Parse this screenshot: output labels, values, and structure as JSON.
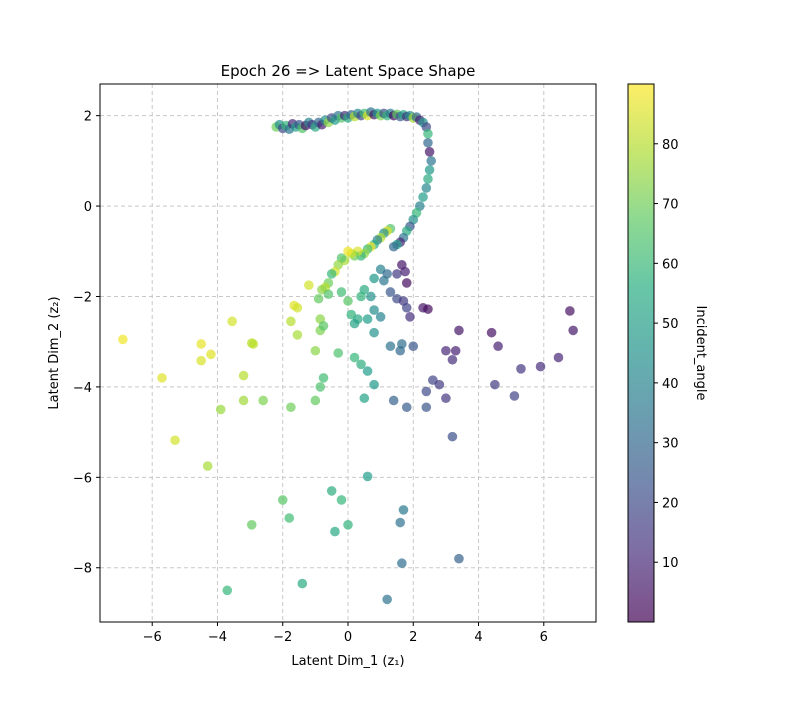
{
  "chart_data": {
    "type": "scatter",
    "title": "Epoch 26 => Latent Space Shape",
    "xlabel": "Latent Dim_1 (z₁)",
    "ylabel": "Latent Dim_2 (z₂)",
    "xlim": [
      -7.6,
      7.6
    ],
    "ylim": [
      -9.2,
      2.7
    ],
    "xticks": [
      -6,
      -4,
      -2,
      0,
      2,
      4,
      6
    ],
    "yticks": [
      -8,
      -6,
      -4,
      -2,
      0,
      2
    ],
    "grid": true,
    "colorbar": {
      "label": "Incident_angle",
      "range": [
        0,
        90
      ],
      "ticks": [
        10,
        20,
        30,
        40,
        50,
        60,
        70,
        80
      ],
      "colormap": "viridis"
    },
    "points": [
      {
        "x": -2.2,
        "y": 1.75,
        "c": 70
      },
      {
        "x": -2.1,
        "y": 1.8,
        "c": 45
      },
      {
        "x": -2.0,
        "y": 1.72,
        "c": 20
      },
      {
        "x": -1.9,
        "y": 1.78,
        "c": 60
      },
      {
        "x": -1.8,
        "y": 1.7,
        "c": 35
      },
      {
        "x": -1.7,
        "y": 1.82,
        "c": 10
      },
      {
        "x": -1.6,
        "y": 1.75,
        "c": 50
      },
      {
        "x": -1.5,
        "y": 1.8,
        "c": 25
      },
      {
        "x": -1.4,
        "y": 1.72,
        "c": 65
      },
      {
        "x": -1.3,
        "y": 1.78,
        "c": 5
      },
      {
        "x": -1.2,
        "y": 1.85,
        "c": 40
      },
      {
        "x": -1.1,
        "y": 1.8,
        "c": 15
      },
      {
        "x": -1.0,
        "y": 1.75,
        "c": 55
      },
      {
        "x": -0.9,
        "y": 1.85,
        "c": 30
      },
      {
        "x": -0.8,
        "y": 1.8,
        "c": 8
      },
      {
        "x": -0.7,
        "y": 1.9,
        "c": 45
      },
      {
        "x": -0.6,
        "y": 1.85,
        "c": 75
      },
      {
        "x": -0.5,
        "y": 1.95,
        "c": 20
      },
      {
        "x": -0.4,
        "y": 1.9,
        "c": 50
      },
      {
        "x": -0.3,
        "y": 2.0,
        "c": 35
      },
      {
        "x": -0.2,
        "y": 1.95,
        "c": 65
      },
      {
        "x": -0.1,
        "y": 2.0,
        "c": 12
      },
      {
        "x": 0.0,
        "y": 1.95,
        "c": 55
      },
      {
        "x": 0.1,
        "y": 2.02,
        "c": 28
      },
      {
        "x": 0.2,
        "y": 1.98,
        "c": 80
      },
      {
        "x": 0.3,
        "y": 2.05,
        "c": 42
      },
      {
        "x": 0.4,
        "y": 2.0,
        "c": 18
      },
      {
        "x": 0.5,
        "y": 2.05,
        "c": 62
      },
      {
        "x": 0.6,
        "y": 2.0,
        "c": 85
      },
      {
        "x": 0.7,
        "y": 2.08,
        "c": 33
      },
      {
        "x": 0.8,
        "y": 2.02,
        "c": 6
      },
      {
        "x": 0.9,
        "y": 2.05,
        "c": 48
      },
      {
        "x": 1.0,
        "y": 2.0,
        "c": 72
      },
      {
        "x": 1.1,
        "y": 2.05,
        "c": 22
      },
      {
        "x": 1.2,
        "y": 2.0,
        "c": 58
      },
      {
        "x": 1.3,
        "y": 2.05,
        "c": 38
      },
      {
        "x": 1.4,
        "y": 2.0,
        "c": 3
      },
      {
        "x": 1.5,
        "y": 2.03,
        "c": 68
      },
      {
        "x": 1.6,
        "y": 1.98,
        "c": 26
      },
      {
        "x": 1.7,
        "y": 2.02,
        "c": 52
      },
      {
        "x": 1.8,
        "y": 1.98,
        "c": 14
      },
      {
        "x": 1.9,
        "y": 2.0,
        "c": 44
      },
      {
        "x": 2.0,
        "y": 1.95,
        "c": 78
      },
      {
        "x": 2.1,
        "y": 1.97,
        "c": 30
      },
      {
        "x": 2.2,
        "y": 1.9,
        "c": 9
      },
      {
        "x": 2.3,
        "y": 1.85,
        "c": 46
      },
      {
        "x": 2.4,
        "y": 1.75,
        "c": 20
      },
      {
        "x": 2.45,
        "y": 1.6,
        "c": 60
      },
      {
        "x": 2.45,
        "y": 1.4,
        "c": 30
      },
      {
        "x": 2.5,
        "y": 1.2,
        "c": 5
      },
      {
        "x": 2.55,
        "y": 1.0,
        "c": 35
      },
      {
        "x": 2.5,
        "y": 0.8,
        "c": 48
      },
      {
        "x": 2.45,
        "y": 0.6,
        "c": 55
      },
      {
        "x": 2.4,
        "y": 0.4,
        "c": 42
      },
      {
        "x": 2.3,
        "y": 0.2,
        "c": 50
      },
      {
        "x": 2.2,
        "y": 0.0,
        "c": 40
      },
      {
        "x": 2.1,
        "y": -0.15,
        "c": 60
      },
      {
        "x": 2.0,
        "y": -0.3,
        "c": 45
      },
      {
        "x": 1.9,
        "y": -0.45,
        "c": 25
      },
      {
        "x": 1.8,
        "y": -0.55,
        "c": 55
      },
      {
        "x": 1.7,
        "y": -0.7,
        "c": 35
      },
      {
        "x": 1.6,
        "y": -0.8,
        "c": 10
      },
      {
        "x": 1.5,
        "y": -0.85,
        "c": 50
      },
      {
        "x": 1.4,
        "y": -0.9,
        "c": 30
      },
      {
        "x": 1.3,
        "y": -0.5,
        "c": 65
      },
      {
        "x": 1.2,
        "y": -0.55,
        "c": 85
      },
      {
        "x": 1.1,
        "y": -0.6,
        "c": 45
      },
      {
        "x": 1.0,
        "y": -0.7,
        "c": 80
      },
      {
        "x": 0.9,
        "y": -0.75,
        "c": 40
      },
      {
        "x": 0.8,
        "y": -0.85,
        "c": 55
      },
      {
        "x": 0.7,
        "y": -0.9,
        "c": 88
      },
      {
        "x": 0.6,
        "y": -0.95,
        "c": 62
      },
      {
        "x": 0.5,
        "y": -1.05,
        "c": 75
      },
      {
        "x": 0.4,
        "y": -1.1,
        "c": 60
      },
      {
        "x": 0.3,
        "y": -1.0,
        "c": 85
      },
      {
        "x": 0.2,
        "y": -1.1,
        "c": 70
      },
      {
        "x": 0.1,
        "y": -1.05,
        "c": 82
      },
      {
        "x": 0.0,
        "y": -1.0,
        "c": 88
      },
      {
        "x": -0.1,
        "y": -1.2,
        "c": 78
      },
      {
        "x": -0.2,
        "y": -1.15,
        "c": 65
      },
      {
        "x": -0.3,
        "y": -1.3,
        "c": 75
      },
      {
        "x": -0.4,
        "y": -1.45,
        "c": 84
      },
      {
        "x": -0.5,
        "y": -1.5,
        "c": 60
      },
      {
        "x": -0.6,
        "y": -1.7,
        "c": 70
      },
      {
        "x": -0.7,
        "y": -1.8,
        "c": 80
      },
      {
        "x": -0.8,
        "y": -1.85,
        "c": 74
      },
      {
        "x": -0.9,
        "y": -2.05,
        "c": 68
      },
      {
        "x": -0.6,
        "y": -1.95,
        "c": 65
      },
      {
        "x": -1.2,
        "y": -1.75,
        "c": 84
      },
      {
        "x": 1.0,
        "y": -1.4,
        "c": 40
      },
      {
        "x": 1.2,
        "y": -1.5,
        "c": 30
      },
      {
        "x": 1.5,
        "y": -1.5,
        "c": 15
      },
      {
        "x": 1.65,
        "y": -1.3,
        "c": 5
      },
      {
        "x": 1.75,
        "y": -1.45,
        "c": 8
      },
      {
        "x": 1.8,
        "y": -1.7,
        "c": 3
      },
      {
        "x": 0.8,
        "y": -1.6,
        "c": 48
      },
      {
        "x": 1.1,
        "y": -1.65,
        "c": 35
      },
      {
        "x": 0.5,
        "y": -1.85,
        "c": 55
      },
      {
        "x": -0.2,
        "y": -1.9,
        "c": 62
      },
      {
        "x": 0.0,
        "y": -2.1,
        "c": 66
      },
      {
        "x": 0.4,
        "y": -2.0,
        "c": 58
      },
      {
        "x": 0.7,
        "y": -2.0,
        "c": 45
      },
      {
        "x": 1.3,
        "y": -1.9,
        "c": 25
      },
      {
        "x": 1.5,
        "y": -2.05,
        "c": 20
      },
      {
        "x": 1.7,
        "y": -2.1,
        "c": 15
      },
      {
        "x": 1.9,
        "y": -2.45,
        "c": 12
      },
      {
        "x": 1.8,
        "y": -2.25,
        "c": 18
      },
      {
        "x": 2.3,
        "y": -2.25,
        "c": 5
      },
      {
        "x": 2.45,
        "y": -2.28,
        "c": 3
      },
      {
        "x": -6.9,
        "y": -2.95,
        "c": 88
      },
      {
        "x": -5.7,
        "y": -3.8,
        "c": 86
      },
      {
        "x": -5.3,
        "y": -5.18,
        "c": 84
      },
      {
        "x": -4.5,
        "y": -3.05,
        "c": 87
      },
      {
        "x": -4.5,
        "y": -3.42,
        "c": 85
      },
      {
        "x": -4.2,
        "y": -3.28,
        "c": 86
      },
      {
        "x": -4.3,
        "y": -5.75,
        "c": 78
      },
      {
        "x": -3.9,
        "y": -4.5,
        "c": 76
      },
      {
        "x": -3.55,
        "y": -2.55,
        "c": 84
      },
      {
        "x": -3.7,
        "y": -8.5,
        "c": 60
      },
      {
        "x": -3.2,
        "y": -3.75,
        "c": 80
      },
      {
        "x": -3.2,
        "y": -4.3,
        "c": 77
      },
      {
        "x": -2.9,
        "y": -3.05,
        "c": 82
      },
      {
        "x": -2.95,
        "y": -3.03,
        "c": 80
      },
      {
        "x": -2.6,
        "y": -4.3,
        "c": 72
      },
      {
        "x": -2.95,
        "y": -7.05,
        "c": 68
      },
      {
        "x": -2.0,
        "y": -6.5,
        "c": 66
      },
      {
        "x": -1.8,
        "y": -6.9,
        "c": 62
      },
      {
        "x": -1.4,
        "y": -8.35,
        "c": 55
      },
      {
        "x": -1.75,
        "y": -2.55,
        "c": 80
      },
      {
        "x": -1.65,
        "y": -2.2,
        "c": 86
      },
      {
        "x": -1.55,
        "y": -2.25,
        "c": 84
      },
      {
        "x": -1.55,
        "y": -2.85,
        "c": 78
      },
      {
        "x": -1.75,
        "y": -4.45,
        "c": 70
      },
      {
        "x": -0.85,
        "y": -2.5,
        "c": 74
      },
      {
        "x": -0.85,
        "y": -2.75,
        "c": 72
      },
      {
        "x": -0.75,
        "y": -2.65,
        "c": 66
      },
      {
        "x": -1.0,
        "y": -3.2,
        "c": 74
      },
      {
        "x": -0.85,
        "y": -4.0,
        "c": 64
      },
      {
        "x": -0.75,
        "y": -3.8,
        "c": 62
      },
      {
        "x": -1.0,
        "y": -4.3,
        "c": 68
      },
      {
        "x": -0.5,
        "y": -6.3,
        "c": 56
      },
      {
        "x": -0.2,
        "y": -6.5,
        "c": 60
      },
      {
        "x": -0.4,
        "y": -7.2,
        "c": 54
      },
      {
        "x": 0.0,
        "y": -7.05,
        "c": 58
      },
      {
        "x": -0.3,
        "y": -3.25,
        "c": 64
      },
      {
        "x": 0.1,
        "y": -2.4,
        "c": 58
      },
      {
        "x": 0.3,
        "y": -2.5,
        "c": 54
      },
      {
        "x": 0.2,
        "y": -2.6,
        "c": 52
      },
      {
        "x": 0.2,
        "y": -3.35,
        "c": 60
      },
      {
        "x": 0.4,
        "y": -3.5,
        "c": 56
      },
      {
        "x": 0.6,
        "y": -3.65,
        "c": 50
      },
      {
        "x": 0.8,
        "y": -3.95,
        "c": 48
      },
      {
        "x": 0.5,
        "y": -4.25,
        "c": 52
      },
      {
        "x": 0.6,
        "y": -5.98,
        "c": 50
      },
      {
        "x": 0.6,
        "y": -2.5,
        "c": 50
      },
      {
        "x": 0.8,
        "y": -2.3,
        "c": 44
      },
      {
        "x": 0.8,
        "y": -2.8,
        "c": 46
      },
      {
        "x": 1.0,
        "y": -2.45,
        "c": 40
      },
      {
        "x": 1.3,
        "y": -3.1,
        "c": 34
      },
      {
        "x": 1.6,
        "y": -3.2,
        "c": 30
      },
      {
        "x": 1.65,
        "y": -3.05,
        "c": 32
      },
      {
        "x": 2.0,
        "y": -3.1,
        "c": 24
      },
      {
        "x": 1.4,
        "y": -4.3,
        "c": 28
      },
      {
        "x": 1.8,
        "y": -4.45,
        "c": 26
      },
      {
        "x": 2.4,
        "y": -4.1,
        "c": 20
      },
      {
        "x": 2.4,
        "y": -4.45,
        "c": 24
      },
      {
        "x": 2.6,
        "y": -3.85,
        "c": 18
      },
      {
        "x": 2.8,
        "y": -3.95,
        "c": 16
      },
      {
        "x": 3.0,
        "y": -3.2,
        "c": 10
      },
      {
        "x": 3.3,
        "y": -3.2,
        "c": 8
      },
      {
        "x": 3.2,
        "y": -3.4,
        "c": 12
      },
      {
        "x": 3.4,
        "y": -2.75,
        "c": 5
      },
      {
        "x": 3.0,
        "y": -4.25,
        "c": 14
      },
      {
        "x": 3.2,
        "y": -5.1,
        "c": 22
      },
      {
        "x": 3.4,
        "y": -7.8,
        "c": 28
      },
      {
        "x": 1.6,
        "y": -7.0,
        "c": 34
      },
      {
        "x": 1.7,
        "y": -6.72,
        "c": 36
      },
      {
        "x": 1.65,
        "y": -7.9,
        "c": 32
      },
      {
        "x": 1.2,
        "y": -8.7,
        "c": 34
      },
      {
        "x": 4.4,
        "y": -2.8,
        "c": 4
      },
      {
        "x": 4.6,
        "y": -3.1,
        "c": 8
      },
      {
        "x": 4.5,
        "y": -3.95,
        "c": 16
      },
      {
        "x": 5.1,
        "y": -4.2,
        "c": 18
      },
      {
        "x": 5.3,
        "y": -3.6,
        "c": 14
      },
      {
        "x": 5.9,
        "y": -3.55,
        "c": 12
      },
      {
        "x": 6.45,
        "y": -3.35,
        "c": 10
      },
      {
        "x": 6.8,
        "y": -2.32,
        "c": 4
      },
      {
        "x": 6.9,
        "y": -2.75,
        "c": 6
      }
    ]
  }
}
